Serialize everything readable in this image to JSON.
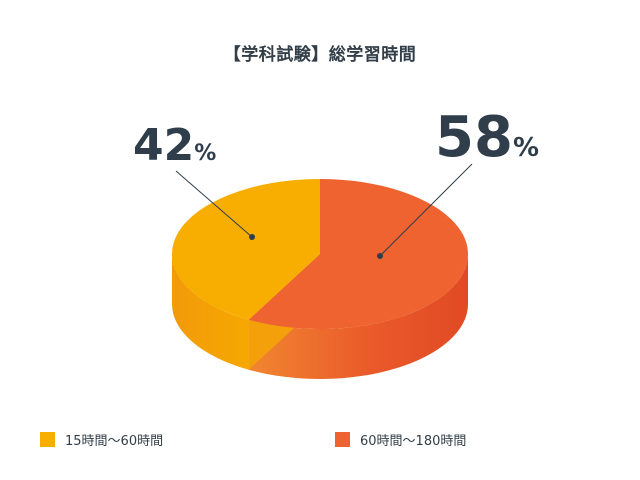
{
  "chart_data": {
    "type": "pie",
    "title": "【学科試験】総学習時間",
    "slices": [
      {
        "label": "15時間〜60時間",
        "value": 42,
        "value_text": "42",
        "unit": "%",
        "color": "#f8ae00"
      },
      {
        "label": "60時間〜180時間",
        "value": 58,
        "value_text": "58",
        "unit": "%",
        "color": "#ee6330"
      }
    ],
    "legend_position": "bottom"
  }
}
